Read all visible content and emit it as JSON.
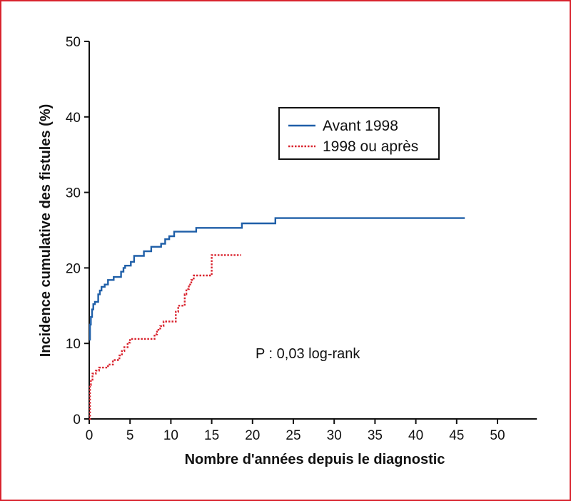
{
  "chart_data": {
    "type": "line",
    "title": "",
    "xlabel": "Nombre d'années depuis le diagnostic",
    "ylabel": "Incidence cumulative des fistules (%)",
    "xlim": [
      0,
      55
    ],
    "ylim": [
      0,
      50
    ],
    "xticks": [
      0,
      5,
      10,
      15,
      20,
      25,
      30,
      35,
      40,
      45,
      50
    ],
    "yticks": [
      0,
      10,
      20,
      30,
      40,
      50
    ],
    "grid": false,
    "legend_position": "top-right",
    "annotation": "P : 0,03 log-rank",
    "series": [
      {
        "name": "Avant 1998",
        "color": "#1f5fa8",
        "style": "solid",
        "step": true,
        "points": [
          [
            0,
            10.5
          ],
          [
            0.1,
            12.5
          ],
          [
            0.2,
            13.5
          ],
          [
            0.35,
            14.5
          ],
          [
            0.5,
            15.2
          ],
          [
            0.7,
            15.5
          ],
          [
            1.1,
            16.5
          ],
          [
            1.3,
            17.0
          ],
          [
            1.5,
            17.5
          ],
          [
            1.9,
            17.8
          ],
          [
            2.3,
            18.4
          ],
          [
            3.0,
            18.8
          ],
          [
            3.9,
            19.5
          ],
          [
            4.2,
            20.0
          ],
          [
            4.4,
            20.3
          ],
          [
            5.1,
            20.8
          ],
          [
            5.5,
            21.6
          ],
          [
            6.7,
            22.2
          ],
          [
            7.6,
            22.8
          ],
          [
            8.8,
            23.2
          ],
          [
            9.3,
            23.8
          ],
          [
            9.8,
            24.2
          ],
          [
            10.4,
            24.8
          ],
          [
            13.1,
            25.3
          ],
          [
            18.7,
            25.9
          ],
          [
            22.8,
            26.6
          ],
          [
            46,
            26.6
          ]
        ]
      },
      {
        "name": "1998 ou après",
        "color": "#d9232e",
        "style": "dotted",
        "step": true,
        "points": [
          [
            0,
            0
          ],
          [
            0.1,
            4.5
          ],
          [
            0.2,
            5.2
          ],
          [
            0.4,
            6.0
          ],
          [
            0.8,
            6.4
          ],
          [
            1.2,
            6.8
          ],
          [
            2.3,
            7.2
          ],
          [
            2.9,
            7.8
          ],
          [
            3.7,
            8.4
          ],
          [
            4.0,
            9.0
          ],
          [
            4.3,
            9.5
          ],
          [
            4.7,
            10.1
          ],
          [
            5.0,
            10.6
          ],
          [
            8.0,
            11.2
          ],
          [
            8.3,
            11.8
          ],
          [
            8.7,
            12.3
          ],
          [
            9.1,
            12.9
          ],
          [
            10.6,
            14.2
          ],
          [
            10.9,
            15.0
          ],
          [
            11.7,
            16.5
          ],
          [
            11.9,
            17.2
          ],
          [
            12.2,
            17.8
          ],
          [
            12.5,
            18.4
          ],
          [
            12.8,
            19.0
          ],
          [
            15.0,
            21.7
          ],
          [
            18.6,
            21.7
          ]
        ]
      }
    ]
  }
}
